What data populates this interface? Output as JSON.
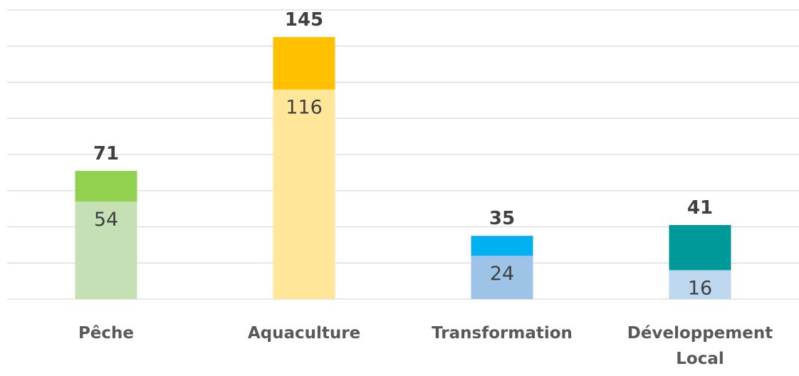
{
  "chart_data": {
    "type": "bar",
    "categories": [
      "Pêche",
      "Aquaculture",
      "Transformation",
      "Développement Local"
    ],
    "series": [
      {
        "values": [
          71,
          145,
          35,
          41
        ],
        "colors": [
          "#92d050",
          "#ffc000",
          "#00b0f0",
          "#009999"
        ]
      },
      {
        "values": [
          54,
          116,
          24,
          16
        ],
        "colors": [
          "#c5e0b4",
          "#ffe699",
          "#9dc3e6",
          "#bdd7ee"
        ]
      }
    ],
    "ylim": [
      0,
      160
    ],
    "yticks": [
      0,
      20,
      40,
      60,
      80,
      100,
      120,
      140,
      160
    ],
    "grid": true
  }
}
